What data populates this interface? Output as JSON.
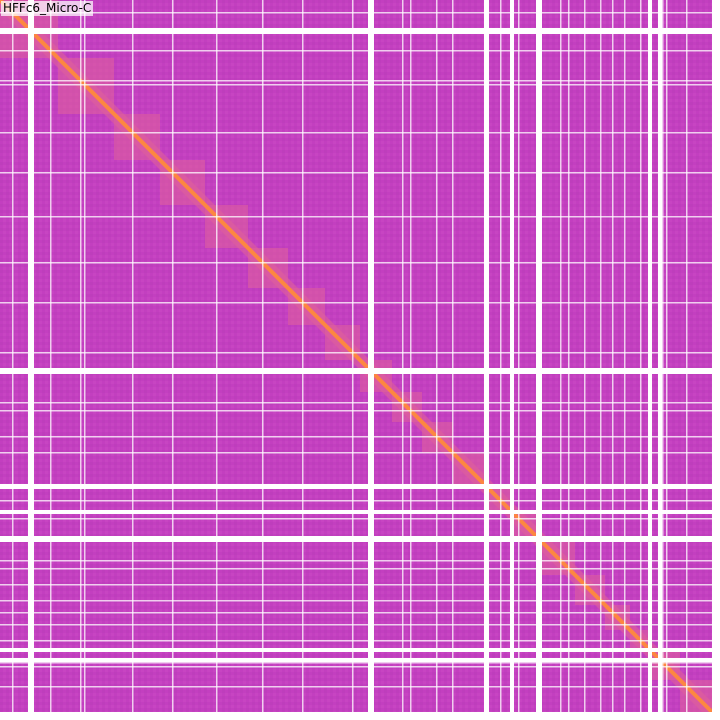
{
  "track": {
    "label": "HFFc6_Micro-C"
  },
  "colors": {
    "background": "#c33fc0",
    "gap": "#ffffff",
    "block": "#e0609a",
    "diagonal": "#ff8a3c"
  }
}
